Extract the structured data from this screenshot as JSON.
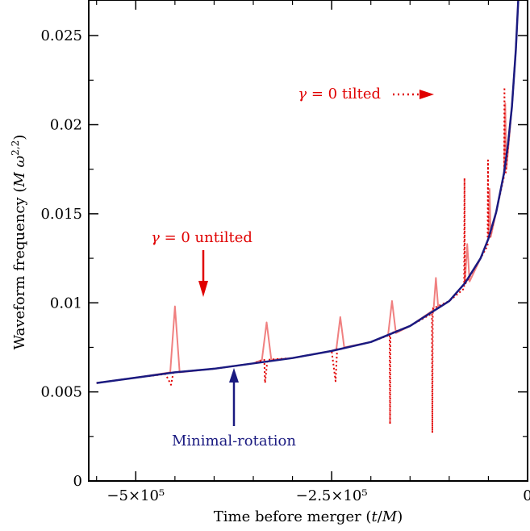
{
  "chart_data": {
    "type": "line",
    "xlabel": "Time before merger (t/M)",
    "ylabel": "Waveform frequency (M ω^{2,2})",
    "xlim": [
      -560000,
      0
    ],
    "ylim": [
      0,
      0.027
    ],
    "x_ticks": [
      {
        "value": -500000,
        "label": "−5×10⁵"
      },
      {
        "value": -250000,
        "label": "−2.5×10⁵"
      },
      {
        "value": 0,
        "label": "0"
      }
    ],
    "y_ticks": [
      {
        "value": 0,
        "label": "0"
      },
      {
        "value": 0.005,
        "label": "0.005"
      },
      {
        "value": 0.01,
        "label": "0.01"
      },
      {
        "value": 0.015,
        "label": "0.015"
      },
      {
        "value": 0.02,
        "label": "0.02"
      },
      {
        "value": 0.025,
        "label": "0.025"
      }
    ],
    "series": [
      {
        "name": "Minimal-rotation",
        "color": "#1a1a80",
        "style": "solid",
        "x": [
          -550000,
          -500000,
          -450000,
          -400000,
          -350000,
          -300000,
          -250000,
          -200000,
          -150000,
          -100000,
          -80000,
          -60000,
          -50000,
          -40000,
          -30000,
          -25000,
          -20000,
          -15000,
          -10000,
          -5000
        ],
        "y": [
          0.0055,
          0.0058,
          0.0061,
          0.0063,
          0.0066,
          0.0069,
          0.0073,
          0.0078,
          0.0087,
          0.0101,
          0.0111,
          0.0125,
          0.0136,
          0.0151,
          0.0173,
          0.0189,
          0.021,
          0.0242,
          0.0287,
          0.04
        ]
      },
      {
        "name": "γ = 0 untilted",
        "color": "#f08080",
        "style": "solid",
        "x": [
          -550000,
          -500000,
          -456000,
          -450000,
          -444000,
          -400000,
          -350000,
          -339000,
          -333000,
          -327000,
          -300000,
          -250000,
          -244000,
          -239000,
          -234000,
          -200000,
          -178000,
          -173000,
          -168000,
          -150000,
          -120000,
          -117000,
          -114000,
          -100000,
          -80000,
          -77000,
          -74000,
          -60000,
          -50000,
          -48500,
          -47000,
          -40000,
          -30000,
          -28500,
          -27000,
          -20000,
          -15000,
          -10000,
          -5000
        ],
        "y": [
          0.0055,
          0.0058,
          0.0061,
          0.0098,
          0.0061,
          0.0063,
          0.0066,
          0.0068,
          0.0089,
          0.0068,
          0.0069,
          0.0073,
          0.0074,
          0.0092,
          0.0075,
          0.0078,
          0.0082,
          0.0101,
          0.0083,
          0.0087,
          0.0096,
          0.0114,
          0.0097,
          0.0101,
          0.0111,
          0.0133,
          0.0112,
          0.0125,
          0.0136,
          0.0164,
          0.0137,
          0.0151,
          0.0173,
          0.0212,
          0.0175,
          0.021,
          0.0242,
          0.0287,
          0.04
        ]
      },
      {
        "name": "γ = 0 tilted",
        "color": "#e00000",
        "style": "dotted",
        "x": [
          -550000,
          -500000,
          -462000,
          -455000,
          -452000,
          -450000,
          -400000,
          -350000,
          -336000,
          -335000,
          -332000,
          -300000,
          -250000,
          -245000,
          -243000,
          -240000,
          -200000,
          -176000,
          -175500,
          -175000,
          -174500,
          -174000,
          -150000,
          -122000,
          -121500,
          -121000,
          -120500,
          -120000,
          -100000,
          -81000,
          -80500,
          -80000,
          -79500,
          -79000,
          -60000,
          -51000,
          -50500,
          -50000,
          -49500,
          -49000,
          -40000,
          -30000,
          -29500,
          -29000,
          -28500,
          -28000,
          -20000,
          -15000,
          -10000,
          -5000
        ],
        "y": [
          0.0055,
          0.0058,
          0.006,
          0.0054,
          0.0061,
          0.0061,
          0.0063,
          0.0066,
          0.0068,
          0.0055,
          0.0068,
          0.0069,
          0.0073,
          0.0056,
          0.0074,
          0.0074,
          0.0078,
          0.0082,
          0.0032,
          0.0083,
          0.0083,
          0.0083,
          0.0087,
          0.0094,
          0.0027,
          0.0094,
          0.0097,
          0.0097,
          0.0101,
          0.0108,
          0.017,
          0.0111,
          0.0111,
          0.0111,
          0.0125,
          0.0132,
          0.018,
          0.0136,
          0.0136,
          0.0136,
          0.0151,
          0.0171,
          0.0221,
          0.0173,
          0.0173,
          0.0173,
          0.021,
          0.0242,
          0.0287,
          0.04
        ]
      }
    ],
    "annotations": [
      {
        "id": "untilted",
        "text": "γ = 0 untilted",
        "color": "#e00000",
        "arrow": "solid",
        "points_to": {
          "x": -450000,
          "y": 0.0103
        }
      },
      {
        "id": "tilted",
        "text": "γ = 0 tilted",
        "color": "#e00000",
        "arrow": "dotted",
        "points_to": {
          "x": -123000,
          "y": 0.0225
        }
      },
      {
        "id": "minrot",
        "text": "Minimal-rotation",
        "color": "#1a1a80",
        "arrow": "solid",
        "points_to": {
          "x": -389000,
          "y": 0.0064
        }
      }
    ]
  }
}
